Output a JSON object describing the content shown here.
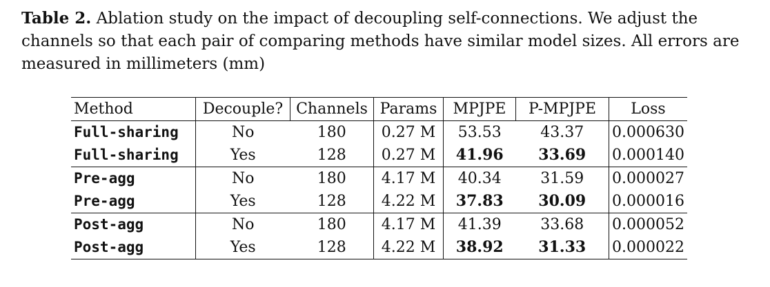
{
  "caption": {
    "label": "Table 2.",
    "text": "Ablation study on the impact of decoupling self-connections. We adjust the channels so that each pair of comparing methods have similar model sizes. All errors are measured in millimeters (mm)"
  },
  "table": {
    "headers": [
      "Method",
      "Decouple?",
      "Channels",
      "Params",
      "MPJPE",
      "P-MPJPE",
      "Loss"
    ],
    "rows": [
      {
        "method": "Full-sharing",
        "decouple": "No",
        "channels": "180",
        "params": "0.27 M",
        "mpjpe": "53.53",
        "pmpjpe": "43.37",
        "loss": "0.000630",
        "bold": false
      },
      {
        "method": "Full-sharing",
        "decouple": "Yes",
        "channels": "128",
        "params": "0.27 M",
        "mpjpe": "41.96",
        "pmpjpe": "33.69",
        "loss": "0.000140",
        "bold": true
      },
      {
        "method": "Pre-agg",
        "decouple": "No",
        "channels": "180",
        "params": "4.17 M",
        "mpjpe": "40.34",
        "pmpjpe": "31.59",
        "loss": "0.000027",
        "bold": false
      },
      {
        "method": "Pre-agg",
        "decouple": "Yes",
        "channels": "128",
        "params": "4.22 M",
        "mpjpe": "37.83",
        "pmpjpe": "30.09",
        "loss": "0.000016",
        "bold": true
      },
      {
        "method": "Post-agg",
        "decouple": "No",
        "channels": "180",
        "params": "4.17 M",
        "mpjpe": "41.39",
        "pmpjpe": "33.68",
        "loss": "0.000052",
        "bold": false
      },
      {
        "method": "Post-agg",
        "decouple": "Yes",
        "channels": "128",
        "params": "4.22 M",
        "mpjpe": "38.92",
        "pmpjpe": "31.33",
        "loss": "0.000022",
        "bold": true
      }
    ]
  }
}
